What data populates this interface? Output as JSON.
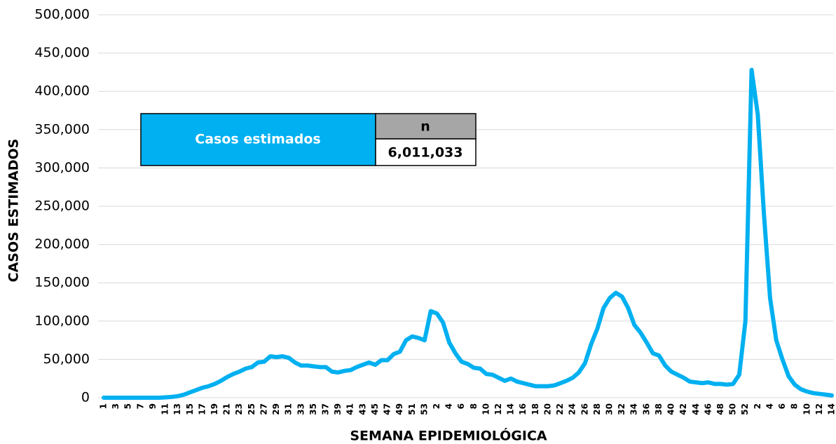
{
  "chart_data": {
    "type": "line",
    "x_label": "SEMANA EPIDEMIOLÓGICA",
    "y_label": "CASOS ESTIMADOS",
    "categories": [
      "1",
      null,
      "3",
      null,
      "5",
      null,
      "7",
      null,
      "9",
      null,
      "11",
      null,
      "13",
      null,
      "15",
      null,
      "17",
      null,
      "19",
      null,
      "21",
      null,
      "23",
      null,
      "25",
      null,
      "27",
      null,
      "29",
      null,
      "31",
      null,
      "33",
      null,
      "35",
      null,
      "37",
      null,
      "39",
      null,
      "41",
      null,
      "43",
      null,
      "45",
      null,
      "47",
      null,
      "49",
      null,
      "51",
      null,
      "53",
      null,
      "2",
      null,
      "4",
      null,
      "6",
      null,
      "8",
      null,
      "10",
      null,
      "12",
      null,
      "14",
      null,
      "16",
      null,
      "18",
      null,
      "20",
      null,
      "22",
      null,
      "24",
      null,
      "26",
      null,
      "28",
      null,
      "30",
      null,
      "32",
      null,
      "34",
      null,
      "36",
      null,
      "38",
      null,
      "40",
      null,
      "42",
      null,
      "44",
      null,
      "46",
      null,
      "48",
      null,
      "50",
      null,
      "52",
      null,
      "2",
      null,
      "4",
      null,
      "6",
      null,
      "8",
      null,
      "10",
      null,
      "12",
      null,
      "14"
    ],
    "values": [
      0,
      0,
      0,
      0,
      0,
      0,
      0,
      0,
      0,
      0,
      500,
      1000,
      2000,
      4000,
      7000,
      10000,
      13000,
      15000,
      18000,
      22000,
      27000,
      31000,
      34000,
      38000,
      40000,
      46000,
      47000,
      54000,
      53000,
      54000,
      52000,
      46000,
      42000,
      42000,
      41000,
      40000,
      40000,
      34000,
      33000,
      35000,
      36000,
      40000,
      43000,
      46000,
      43000,
      49000,
      49000,
      57000,
      60000,
      75000,
      80000,
      78000,
      75000,
      113000,
      110000,
      98000,
      72000,
      58000,
      47000,
      44000,
      39000,
      38000,
      31000,
      30000,
      26000,
      22000,
      25000,
      21000,
      19000,
      17000,
      15000,
      15000,
      15000,
      16000,
      19000,
      22000,
      26000,
      33000,
      45000,
      70000,
      90000,
      117000,
      130000,
      137000,
      132000,
      117000,
      95000,
      85000,
      72000,
      58000,
      55000,
      42000,
      34000,
      30000,
      26000,
      21000,
      20000,
      19000,
      20000,
      18000,
      18000,
      17000,
      18000,
      30000,
      100000,
      428000,
      370000,
      240000,
      130000,
      75000,
      50000,
      28000,
      17000,
      11000,
      8000,
      6000,
      5000,
      4000,
      3000
    ],
    "color": "#00b0f0",
    "ylim": [
      0,
      500000
    ],
    "yticks": [
      0,
      {
        "value": 50000,
        "label": "50,000"
      },
      {
        "value": 100000,
        "label": "100,000"
      },
      {
        "value": 150000,
        "label": "150,000"
      },
      {
        "value": 200000,
        "label": "200,000"
      },
      {
        "value": 250000,
        "label": "250,000"
      },
      {
        "value": 300000,
        "label": "300,000"
      },
      {
        "value": 350000,
        "label": "350,000"
      },
      {
        "value": 400000,
        "label": "400,000"
      },
      {
        "value": 450000,
        "label": "450,000"
      },
      {
        "value": 500000,
        "label": "500,000"
      }
    ],
    "grid": true,
    "summary_table": {
      "label": "Casos estimados",
      "header": "n",
      "value": "6,011,033"
    }
  }
}
